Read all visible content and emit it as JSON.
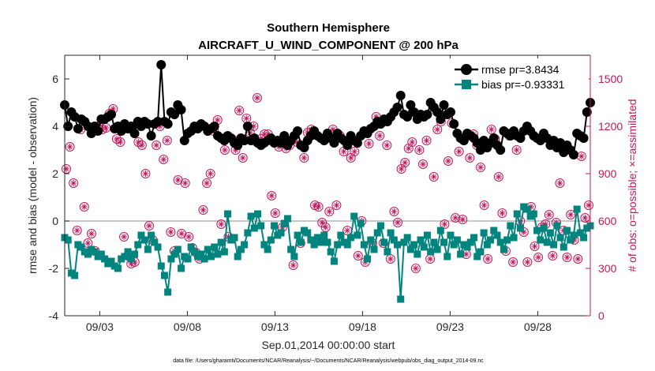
{
  "chart_data": {
    "type": "line",
    "title": "Southern Hemisphere",
    "subtitle": "AIRCRAFT_U_WIND_COMPONENT @ 200 hPa",
    "xlabel": "Sep.01,2014 00:00:00 start",
    "ylabel": "rmse and bias (model - observation)",
    "ylabel_right": "# of obs: o=possible; ×=assimilated",
    "footer": "data file: /Users/gharamti/Documents/NCAR/Reanalysis/~/Documents/NCAR/Reanalysis/webpub/obs_diag_output_2014-09.nc",
    "x_unit": "days since Sep.01,2014",
    "xlim": [
      1,
      31
    ],
    "ylim": [
      -4,
      7
    ],
    "ylim_right": [
      0,
      1650
    ],
    "x_ticks": [
      3,
      8,
      13,
      18,
      23,
      28
    ],
    "x_tick_labels": [
      "09/03",
      "09/08",
      "09/13",
      "09/18",
      "09/23",
      "09/28"
    ],
    "y_ticks": [
      -4,
      -2,
      0,
      2,
      4,
      6
    ],
    "y_ticks_right": [
      0,
      300,
      600,
      900,
      1200,
      1500
    ],
    "legend": {
      "position": "top-right"
    },
    "colors": {
      "rmse": "#000000",
      "bias": "#00847e",
      "obs": "#c2185b",
      "zero_line": "#b3b3b3"
    },
    "series": [
      {
        "name": "rmse pr=3.8434",
        "marker": "circle",
        "values": [
          4.9,
          4.0,
          4.6,
          4.4,
          3.9,
          4.3,
          4.2,
          4.0,
          3.7,
          4.0,
          3.8,
          4.3,
          4.3,
          4.4,
          4.5,
          3.9,
          4.0,
          3.8,
          4.1,
          3.9,
          4.0,
          3.7,
          4.2,
          4.0,
          4.2,
          4.1,
          3.6,
          4.1,
          4.2,
          6.6,
          4.2,
          4.1,
          4.6,
          4.5,
          4.9,
          4.7,
          3.4,
          3.7,
          3.8,
          4.0,
          3.9,
          4.1,
          4.0,
          3.8,
          3.9,
          4.0,
          3.6,
          3.5,
          3.4,
          3.6,
          3.5,
          3.3,
          3.2,
          3.5,
          3.4,
          4.0,
          3.4,
          3.5,
          3.3,
          3.2,
          3.3,
          3.4,
          3.5,
          3.3,
          3.4,
          3.3,
          3.6,
          3.2,
          3.4,
          3.6,
          3.8,
          3.2,
          3.1,
          3.4,
          3.6,
          3.8,
          3.6,
          3.5,
          3.4,
          3.7,
          3.5,
          3.3,
          3.7,
          3.5,
          3.4,
          3.2,
          3.6,
          3.4,
          3.3,
          3.6,
          3.8,
          3.7,
          3.9,
          4.0,
          4.2,
          4.1,
          4.3,
          4.2,
          4.4,
          4.6,
          4.8,
          5.3,
          4.5,
          4.4,
          4.9,
          4.6,
          4.3,
          4.5,
          4.4,
          4.5,
          5.0,
          4.8,
          4.6,
          4.3,
          4.9,
          4.5,
          4.6,
          4.1,
          3.7,
          3.5,
          3.4,
          3.7,
          3.6,
          3.5,
          3.3,
          3.0,
          3.4,
          3.1,
          3.3,
          3.5,
          3.2,
          3.0,
          3.8,
          3.7,
          3.6,
          3.8,
          3.6,
          3.5,
          3.8,
          4.0,
          3.8,
          3.6,
          3.5,
          3.4,
          3.7,
          3.5,
          3.2,
          3.4,
          3.1,
          3.3,
          2.9,
          3.2,
          3.0,
          2.8,
          3.7,
          3.6,
          3.5,
          4.6,
          5.0
        ]
      },
      {
        "name": "bias pr=-0.93331",
        "marker": "square",
        "values": [
          -0.7,
          -0.8,
          -2.2,
          -2.3,
          -1.0,
          -1.1,
          -1.3,
          -1.4,
          -1.2,
          -1.3,
          -1.5,
          -1.4,
          -1.6,
          -1.8,
          -1.7,
          -1.9,
          -2.0,
          -1.6,
          -1.5,
          -1.3,
          -1.6,
          -1.4,
          -1.0,
          -0.6,
          -0.8,
          -1.2,
          -0.6,
          -0.9,
          -1.1,
          -1.9,
          -2.3,
          -3.0,
          -1.6,
          -1.4,
          -1.2,
          -2.0,
          -1.5,
          -1.6,
          -1.1,
          -1.3,
          -1.5,
          -1.4,
          -1.6,
          -1.2,
          -1.5,
          -1.1,
          -1.4,
          -0.9,
          -1.3,
          0.3,
          -0.8,
          -0.7,
          -1.5,
          -1.2,
          -1.0,
          -0.5,
          0.2,
          -0.3,
          0.3,
          -0.2,
          -1.0,
          -1.2,
          -0.8,
          -0.2,
          -0.6,
          -0.5,
          -0.1,
          0.1,
          -1.2,
          -1.5,
          -0.6,
          -0.9,
          -0.4,
          -0.5,
          -0.8,
          -1.0,
          -0.7,
          -0.9,
          -0.6,
          -0.9,
          -1.3,
          -1.7,
          -1.0,
          -0.6,
          -0.9,
          -1.0,
          -0.7,
          0.2,
          -0.6,
          -0.1,
          -1.0,
          -1.6,
          -0.8,
          -1.2,
          -0.5,
          -0.2,
          -0.9,
          -1.3,
          -0.5,
          -0.8,
          -1.0,
          -3.3,
          -0.9,
          -0.7,
          -1.2,
          -1.0,
          -1.4,
          -0.8,
          -1.1,
          -0.6,
          -1.3,
          -0.9,
          -1.2,
          -0.4,
          -0.9,
          -1.5,
          -0.6,
          -1.0,
          -0.8,
          -1.4,
          -1.0,
          -1.1,
          -0.9,
          -0.7,
          -1.5,
          -1.3,
          -0.5,
          -1.0,
          -0.8,
          -0.4,
          -0.6,
          -0.9,
          -1.2,
          -0.8,
          -0.2,
          -0.7,
          0.3,
          -0.3,
          0.6,
          0.5,
          0.2,
          0.3,
          -0.4,
          -0.8,
          -0.3,
          -0.9,
          -0.5,
          -1.0,
          -0.2,
          -0.7,
          -1.1,
          -0.4,
          -0.8,
          -0.6,
          0.5,
          -0.5,
          -0.7,
          -0.3,
          -0.2
        ]
      }
    ],
    "obs_possible": [
      930,
      1070,
      840,
      540,
      1180,
      690,
      460,
      520,
      410,
      1200,
      1180,
      1190,
      1280,
      1310,
      1120,
      1100,
      500,
      380,
      330,
      340,
      1100,
      1080,
      900,
      570,
      480,
      1080,
      1200,
      990,
      1110,
      530,
      410,
      860,
      520,
      840,
      500,
      430,
      400,
      360,
      670,
      840,
      900,
      1170,
      1240,
      580,
      1050,
      500,
      1120,
      1050,
      1300,
      1000,
      1250,
      1160,
      1200,
      1380,
      1120,
      1150,
      1150,
      760,
      650,
      1070,
      560,
      1060,
      1080,
      320,
      1100,
      460,
      1000,
      1160,
      1180,
      700,
      690,
      590,
      560,
      660,
      1180,
      700,
      1140,
      1040,
      540,
      1000,
      1040,
      380,
      600,
      340,
      1090,
      460,
      1260,
      1140,
      460,
      1080,
      360,
      660,
      590,
      930,
      970,
      1060,
      1100,
      300,
      1050,
      960,
      1110,
      360,
      880,
      1180,
      1230,
      580,
      980,
      1220,
      620,
      1040,
      610,
      390,
      1000,
      1150,
      1080,
      940,
      700,
      360,
      1180,
      1120,
      880,
      650,
      410,
      1140,
      340,
      1050,
      600,
      530,
      340,
      690,
      440,
      370,
      560,
      580,
      640,
      380,
      590,
      840,
      540,
      370,
      640,
      480,
      360,
      1010,
      620,
      700
    ]
  }
}
